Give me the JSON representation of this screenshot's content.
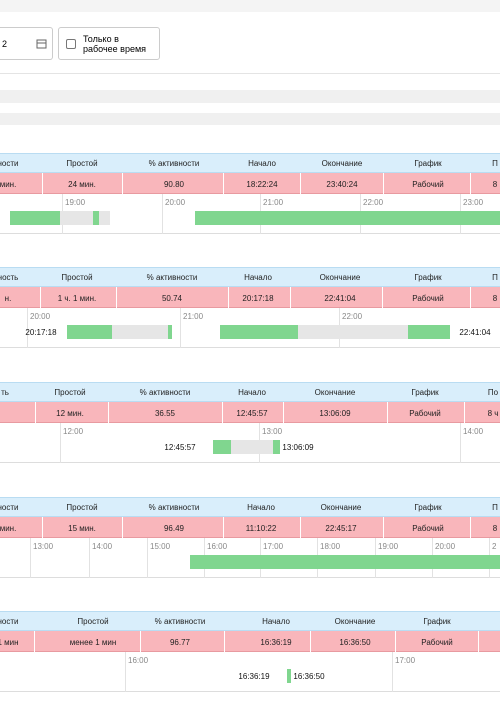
{
  "filter": {
    "date_fragment": "2",
    "checkbox_label": "Только в рабочее время"
  },
  "sections": [
    {
      "headers": [
        "ности",
        "Простой",
        "% активности",
        "Начало",
        "Окончание",
        "График",
        "П"
      ],
      "row": [
        "мин.",
        "24 мин.",
        "90.80",
        "18:22:24",
        "23:40:24",
        "Рабочий",
        "8"
      ],
      "hours": [
        "19:00",
        "20:00",
        "21:00",
        "22:00",
        "23:00"
      ],
      "labels": []
    },
    {
      "headers": [
        "ность",
        "Простой",
        "% активности",
        "Начало",
        "Окончание",
        "График",
        "П"
      ],
      "row": [
        "н.",
        "1 ч. 1 мин.",
        "50.74",
        "20:17:18",
        "22:41:04",
        "Рабочий",
        "8"
      ],
      "hours": [
        "20:00",
        "21:00",
        "22:00"
      ],
      "labels": [
        "20:17:18",
        "22:41:04"
      ]
    },
    {
      "headers": [
        "ть",
        "Простой",
        "% активности",
        "Начало",
        "Окончание",
        "График",
        "По"
      ],
      "row": [
        "12 мин.",
        "36.55",
        "12:45:57",
        "13:06:09",
        "Рабочий",
        "8 ч"
      ],
      "hours": [
        "12:00",
        "13:00",
        "14:00"
      ],
      "labels": [
        "12:45:57",
        "13:06:09"
      ]
    },
    {
      "headers": [
        "ности",
        "Простой",
        "% активности",
        "Начало",
        "Окончание",
        "График",
        "П"
      ],
      "row": [
        "мин.",
        "15 мин.",
        "96.49",
        "11:10:22",
        "22:45:17",
        "Рабочий",
        "8"
      ],
      "hours": [
        "13:00",
        "14:00",
        "15:00",
        "16:00",
        "17:00",
        "18:00",
        "19:00",
        "20:00",
        "2"
      ],
      "labels": []
    },
    {
      "headers": [
        "ности",
        "Простой",
        "% активности",
        "Начало",
        "Окончание",
        "График"
      ],
      "row": [
        "1 мин",
        "менее 1 мин",
        "96.77",
        "16:36:19",
        "16:36:50",
        "Рабочий"
      ],
      "hours": [
        "16:00",
        "17:00"
      ],
      "labels": [
        "16:36:19",
        "16:36:50"
      ]
    }
  ]
}
